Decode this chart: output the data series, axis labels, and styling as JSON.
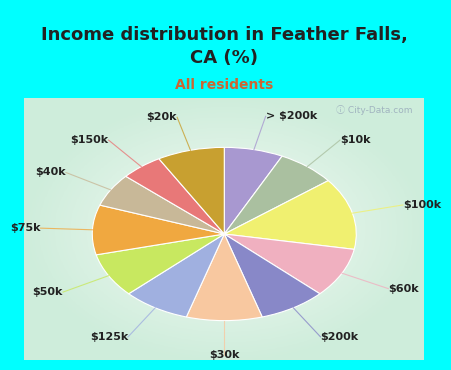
{
  "title": "Income distribution in Feather Falls,\nCA (%)",
  "subtitle": "All residents",
  "bg_color": "#00FFFF",
  "chart_bg_top": "#e8f5f0",
  "chart_bg_bottom": "#c8eee0",
  "labels": [
    "> $200k",
    "$10k",
    "$100k",
    "$60k",
    "$200k",
    "$30k",
    "$125k",
    "$50k",
    "$75k",
    "$40k",
    "$150k",
    "$20k"
  ],
  "values": [
    7,
    7,
    13,
    9,
    8,
    9,
    8,
    8,
    9,
    6,
    5,
    8
  ],
  "colors": [
    "#a898d0",
    "#aac0a0",
    "#f0f070",
    "#f0b0c0",
    "#8888c8",
    "#f8c8a0",
    "#a0b0e0",
    "#c8e860",
    "#f0a840",
    "#c8b898",
    "#e87878",
    "#c8a030"
  ],
  "title_fontsize": 13,
  "subtitle_fontsize": 10,
  "label_fontsize": 8,
  "startangle": 90
}
